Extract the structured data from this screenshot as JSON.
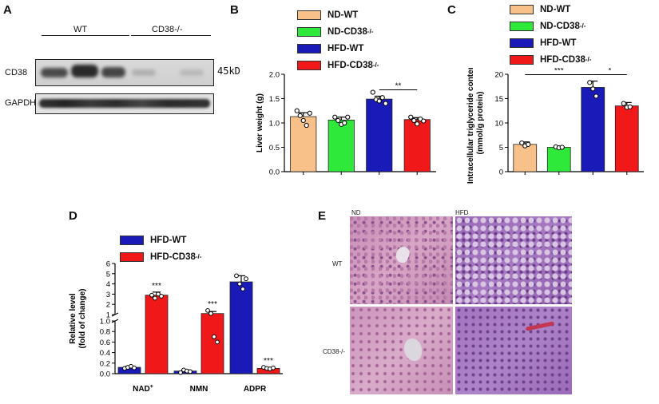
{
  "panels": {
    "A": "A",
    "B": "B",
    "C": "C",
    "D": "D",
    "E": "E"
  },
  "western_blot": {
    "groups": [
      "WT",
      "CD38-/-"
    ],
    "rows": [
      {
        "label": "CD38",
        "size": "45kD"
      },
      {
        "label": "GAPDH",
        "size": ""
      }
    ]
  },
  "legend_b": [
    {
      "name": "ND-WT",
      "sup": "",
      "color": "#f9c18a"
    },
    {
      "name": "ND-CD38",
      "sup": "-/-",
      "color": "#2ee83a"
    },
    {
      "name": "HFD-WT",
      "sup": "",
      "color": "#1a1ab8"
    },
    {
      "name": "HFD-CD38",
      "sup": "-/-",
      "color": "#f01818"
    }
  ],
  "legend_c": [
    {
      "name": "ND-WT",
      "sup": "",
      "color": "#f9c18a"
    },
    {
      "name": "ND-CD38",
      "sup": "-/-",
      "color": "#2ee83a"
    },
    {
      "name": "HFD-WT",
      "sup": "",
      "color": "#1a1ab8"
    },
    {
      "name": "HFD-CD38",
      "sup": "-/-",
      "color": "#f01818"
    }
  ],
  "legend_d": [
    {
      "name": "HFD-WT",
      "sup": "",
      "color": "#1a1ab8"
    },
    {
      "name": "HFD-CD38",
      "sup": "-/-",
      "color": "#f01818"
    }
  ],
  "he_panel": {
    "cols": [
      "ND",
      "HFD"
    ],
    "rows": [
      "WT",
      "CD38-/-"
    ]
  },
  "chart_data": [
    {
      "panel": "B",
      "type": "bar",
      "ylabel": "Liver weight (g)",
      "ylim": [
        0,
        2.0
      ],
      "yticks": [
        "0.0",
        "0.5",
        "1.0",
        "1.5",
        "2.0"
      ],
      "groups": [
        "ND-WT",
        "ND-CD38-/-",
        "HFD-WT",
        "HFD-CD38-/-"
      ],
      "values": [
        1.13,
        1.06,
        1.49,
        1.07
      ],
      "errors": [
        0.08,
        0.06,
        0.06,
        0.04
      ],
      "points": [
        [
          1.25,
          1.15,
          1.05,
          0.95,
          1.2
        ],
        [
          1.12,
          1.05,
          0.97,
          1.0,
          1.12
        ],
        [
          1.63,
          1.48,
          1.45,
          1.52,
          1.4
        ],
        [
          1.12,
          1.05,
          0.98,
          1.08,
          1.04
        ]
      ],
      "colors": [
        "#f9c18a",
        "#2ee83a",
        "#1a1ab8",
        "#f01818"
      ],
      "significance": [
        {
          "from": 2,
          "to": 3,
          "label": "**"
        }
      ]
    },
    {
      "panel": "C",
      "type": "bar",
      "ylabel": "Intracellular triglyceride content\n(mmol/g protein)",
      "ylim": [
        0,
        20
      ],
      "yticks": [
        "0",
        "5",
        "10",
        "15",
        "20"
      ],
      "groups": [
        "ND-WT",
        "ND-CD38-/-",
        "HFD-WT",
        "HFD-CD38-/-"
      ],
      "values": [
        5.6,
        5.0,
        17.3,
        13.5
      ],
      "errors": [
        0.5,
        0.2,
        1.3,
        0.7
      ],
      "points": [
        [
          5.9,
          5.3,
          5.6
        ],
        [
          5.1,
          4.9,
          5.0
        ],
        [
          18.3,
          17.0,
          15.5
        ],
        [
          14.0,
          13.2,
          13.3
        ]
      ],
      "colors": [
        "#f9c18a",
        "#2ee83a",
        "#1a1ab8",
        "#f01818"
      ],
      "significance": [
        {
          "from": 0,
          "to": 2,
          "label": "***"
        },
        {
          "from": 2,
          "to": 3,
          "label": "*"
        }
      ]
    },
    {
      "panel": "D",
      "type": "bar",
      "ylabel": "Relative level\n(fold of change)",
      "broken_axis": true,
      "upper_range": [
        1,
        6
      ],
      "lower_range": [
        0,
        1.0
      ],
      "upper_ticks": [
        "1",
        "2",
        "3",
        "4",
        "5",
        "6"
      ],
      "lower_ticks": [
        "0.0",
        "0.2",
        "0.4",
        "0.6",
        "0.8",
        "1.0"
      ],
      "categories": [
        "NAD",
        "NMN",
        "ADPR"
      ],
      "category_sup": [
        "+",
        "",
        ""
      ],
      "series": [
        {
          "name": "HFD-WT",
          "color": "#1a1ab8",
          "values": [
            0.12,
            0.05,
            4.2
          ],
          "errors": [
            0.02,
            0.02,
            0.6
          ],
          "points": [
            [
              0.1,
              0.12,
              0.14,
              0.11
            ],
            [
              0.02,
              0.07,
              0.05,
              0.04
            ],
            [
              4.8,
              4.0,
              3.5,
              4.5
            ]
          ]
        },
        {
          "name": "HFD-CD38-/-",
          "color": "#f01818",
          "values": [
            2.9,
            1.1,
            0.1
          ],
          "errors": [
            0.3,
            0.2,
            0.02
          ],
          "points": [
            [
              2.9,
              2.6,
              3.0,
              2.8
            ],
            [
              1.4,
              1.1,
              0.7,
              0.6
            ],
            [
              0.12,
              0.1,
              0.09,
              0.11
            ]
          ]
        }
      ],
      "annotations": [
        {
          "category": 0,
          "series": 1,
          "label": "***"
        },
        {
          "category": 1,
          "series": 1,
          "label": "***"
        },
        {
          "category": 2,
          "series": 1,
          "label": "***"
        }
      ]
    }
  ]
}
